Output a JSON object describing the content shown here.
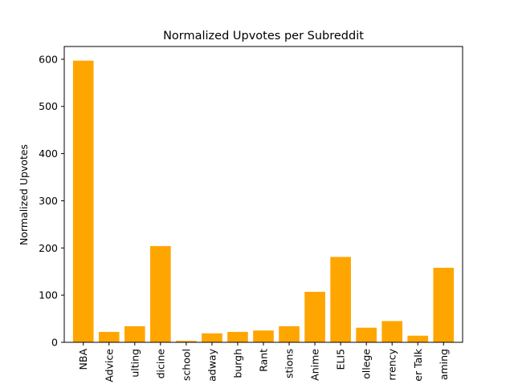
{
  "chart_data": {
    "type": "bar",
    "title": "Normalized Upvotes per Subreddit",
    "xlabel": "",
    "ylabel": "Normalized Upvotes",
    "categories": [
      "NBA",
      "Advice",
      "ulting",
      "dicine",
      "school",
      "adway",
      "burgh",
      "Rant",
      "stions",
      "Anime",
      "ELI5",
      "ollege",
      "rrency",
      "er Talk",
      "aming"
    ],
    "values": [
      597,
      22,
      34,
      204,
      3,
      19,
      22,
      25,
      34,
      107,
      181,
      31,
      45,
      14,
      158
    ],
    "ylim": [
      0,
      627
    ],
    "yticks": [
      0,
      100,
      200,
      300,
      400,
      500,
      600
    ],
    "bar_color": "#ffa500",
    "grid": false,
    "legend": "none"
  }
}
